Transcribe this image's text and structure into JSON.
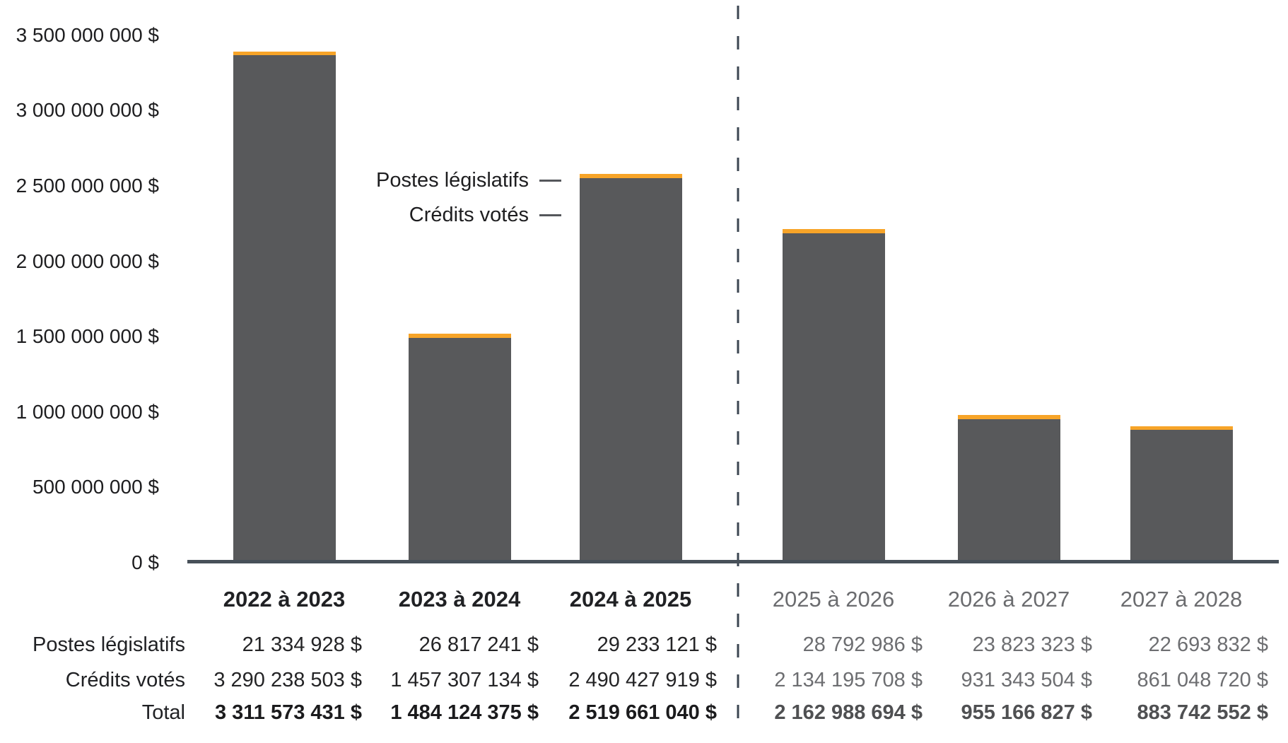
{
  "chart_data": {
    "type": "bar",
    "stacked": true,
    "categories": [
      "2022 à 2023",
      "2023 à 2024",
      "2024 à 2025",
      "2025 à 2026",
      "2026 à 2027",
      "2027 à 2028"
    ],
    "series": [
      {
        "name": "Postes législatifs",
        "color": "#f7a428",
        "values": [
          21334928,
          26817241,
          29233121,
          28792986,
          23823323,
          22693832
        ]
      },
      {
        "name": "Crédits votés",
        "color": "#58595b",
        "values": [
          3290238503,
          1457307134,
          2490427919,
          2134195708,
          931343504,
          861048720
        ]
      }
    ],
    "totals": [
      3311573431,
      1484124375,
      2519661040,
      2162988694,
      955166827,
      883742552
    ],
    "y_ticks": [
      "0 $",
      "500 000 000 $",
      "1 000 000 000 $",
      "1 500 000 000 $",
      "2 000 000 000 $",
      "2 500 000 000 $",
      "3 000 000 000 $",
      "3 500 000 000 $"
    ],
    "ylim": [
      0,
      3500000000
    ],
    "grid": false,
    "legend_position": "callout-pointing-to-third-bar",
    "forecast_from_index": 3,
    "divider_between": [
      "2024 à 2025",
      "2025 à 2026"
    ]
  },
  "annotations": {
    "postes_label": "Postes législatifs",
    "credits_label": "Crédits votés"
  },
  "table": {
    "rows": [
      {
        "label": "Postes législatifs",
        "bold": false,
        "values": [
          "21 334 928 $",
          "26 817 241 $",
          "29 233 121 $",
          "28 792 986 $",
          "23 823 323 $",
          "22 693 832 $"
        ]
      },
      {
        "label": "Crédits votés",
        "bold": false,
        "values": [
          "3 290 238 503 $",
          "1 457 307 134 $",
          "2 490 427 919 $",
          "2 134 195 708 $",
          "931 343 504 $",
          "861 048 720 $"
        ]
      },
      {
        "label": "Total",
        "bold": true,
        "values": [
          "3 311 573 431 $",
          "1 484 124 375 $",
          "2 519 661 040 $",
          "2 162 988 694 $",
          "955 166 827 $",
          "883 742 552 $"
        ]
      }
    ]
  },
  "colors": {
    "bar_gray": "#58595b",
    "bar_orange": "#f7a428",
    "axis": "#475059",
    "divider": "#3b4551",
    "text_dark": "#1d1d1f",
    "text_gray": "#6d6e71"
  }
}
